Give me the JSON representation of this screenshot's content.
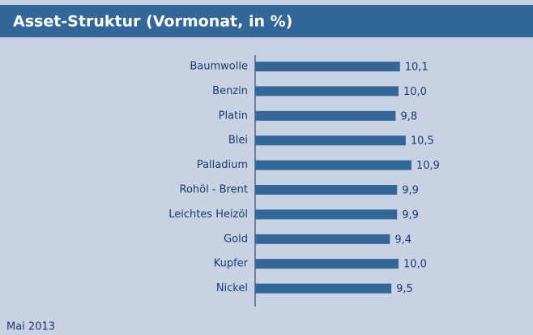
{
  "chart_data": {
    "type": "barh",
    "title": "Asset-Struktur (Vormonat, in %)",
    "categories": [
      "Baumwolle",
      "Benzin",
      "Platin",
      "Blei",
      "Palladium",
      "Rohöl - Brent",
      "Leichtes Heizöl",
      "Gold",
      "Kupfer",
      "Nickel"
    ],
    "values": [
      10.1,
      10.0,
      9.8,
      10.5,
      10.9,
      9.9,
      9.9,
      9.4,
      10.0,
      9.5
    ],
    "value_labels": [
      "10,1",
      "10,0",
      "9,8",
      "10,5",
      "10,9",
      "9,9",
      "9,9",
      "9,4",
      "10,0",
      "9,5"
    ],
    "color": "#336699",
    "footnote": "Mai 2013"
  }
}
